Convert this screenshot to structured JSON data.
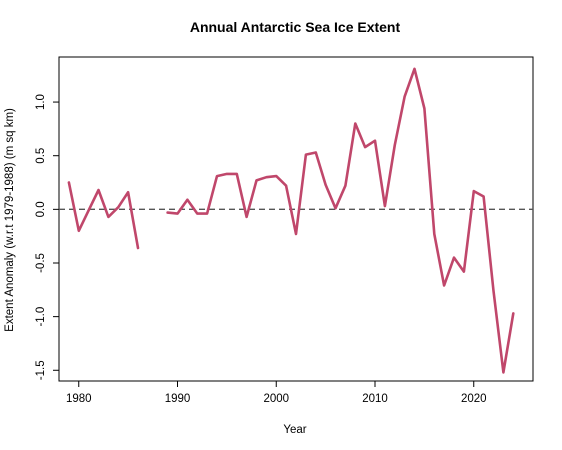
{
  "chart_data": {
    "type": "line",
    "title": "Annual Antarctic Sea Ice Extent",
    "xlabel": "Year",
    "ylabel": "Extent Anomaly (w.r.t 1979-1988) (m sq km)",
    "xlim": [
      1978,
      2026
    ],
    "ylim": [
      -1.6,
      1.42
    ],
    "xticks": [
      1980,
      1990,
      2000,
      2010,
      2020
    ],
    "xtick_labels": [
      "1980",
      "1990",
      "2000",
      "2010",
      "2020"
    ],
    "yticks": [
      -1.5,
      -1.0,
      -0.5,
      0.0,
      0.5,
      1.0
    ],
    "ytick_labels": [
      "-1.5",
      "-1.0",
      "-0.5",
      "0.0",
      "0.5",
      "1.0"
    ],
    "reference_line": {
      "y": 0,
      "style": "dashed",
      "color": "#555555"
    },
    "grid": false,
    "series": [
      {
        "color": "#c0476b",
        "segments": [
          {
            "x": [
              1979,
              1980,
              1981,
              1982,
              1983,
              1984,
              1985,
              1986
            ],
            "y": [
              0.25,
              -0.2,
              -0.01,
              0.18,
              -0.07,
              0.02,
              0.16,
              -0.36
            ]
          },
          {
            "x": [
              1989,
              1990,
              1991,
              1992,
              1993,
              1994,
              1995,
              1996,
              1997,
              1998,
              1999,
              2000,
              2001,
              2002,
              2003,
              2004,
              2005,
              2006,
              2007,
              2008,
              2009,
              2010,
              2011,
              2012,
              2013,
              2014,
              2015,
              2016,
              2017,
              2018,
              2019,
              2020,
              2021,
              2022,
              2023,
              2024
            ],
            "y": [
              -0.03,
              -0.04,
              0.09,
              -0.04,
              -0.04,
              0.31,
              0.33,
              0.33,
              -0.07,
              0.27,
              0.3,
              0.31,
              0.22,
              -0.23,
              0.51,
              0.53,
              0.23,
              0.01,
              0.22,
              0.8,
              0.58,
              0.64,
              0.03,
              0.6,
              1.05,
              1.31,
              0.94,
              -0.23,
              -0.71,
              -0.45,
              -0.58,
              0.17,
              0.12,
              -0.76,
              -1.52,
              -0.97
            ]
          }
        ]
      }
    ]
  }
}
